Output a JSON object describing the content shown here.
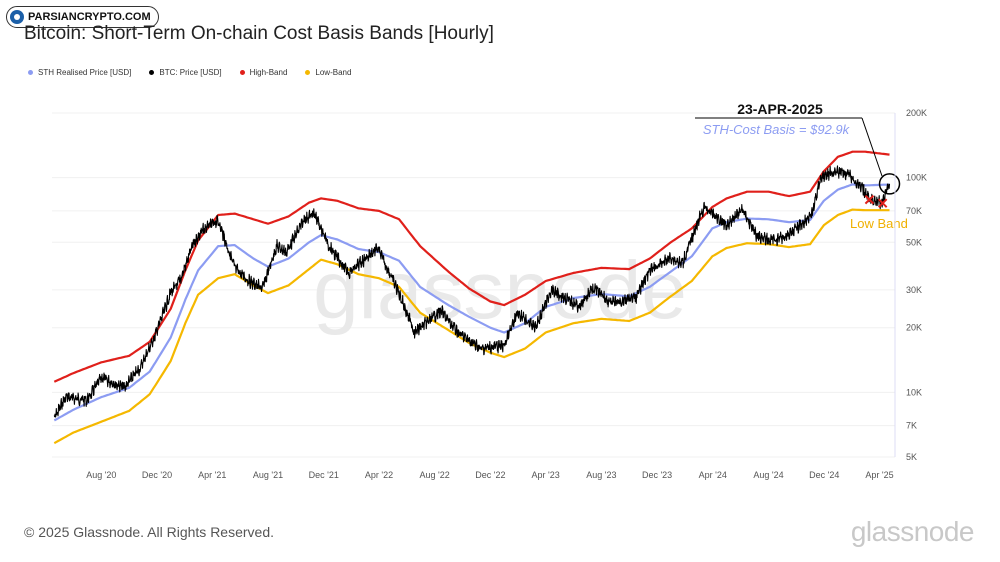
{
  "badge": {
    "text": "PARSIANCRYPTO.COM"
  },
  "title": "Bitcoin: Short-Term On-chain Cost Basis Bands [Hourly]",
  "legend": [
    {
      "label": "STH Realised Price [USD]",
      "color": "#8c9cf2"
    },
    {
      "label": "BTC: Price [USD]",
      "color": "#000000"
    },
    {
      "label": "High-Band",
      "color": "#e0201b"
    },
    {
      "label": "Low-Band",
      "color": "#f5b800"
    }
  ],
  "annotation": {
    "date": "23-APR-2025",
    "cost_basis": "STH-Cost Basis = $92.9k",
    "low_band": "Low Band"
  },
  "watermark": "glassnode",
  "footer": "© 2025 Glassnode. All Rights Reserved.",
  "brand": "glassnode",
  "chart_data": {
    "type": "line",
    "title": "Bitcoin: Short-Term On-chain Cost Basis Bands [Hourly]",
    "y_scale": "log",
    "ylim": [
      5000,
      200000
    ],
    "y_ticks": [
      {
        "value": 200000,
        "label": "200K"
      },
      {
        "value": 100000,
        "label": "100K"
      },
      {
        "value": 70000,
        "label": "70K"
      },
      {
        "value": 50000,
        "label": "50K"
      },
      {
        "value": 30000,
        "label": "30K"
      },
      {
        "value": 20000,
        "label": "20K"
      },
      {
        "value": 10000,
        "label": "10K"
      },
      {
        "value": 7000,
        "label": "7K"
      },
      {
        "value": 5000,
        "label": "5K"
      }
    ],
    "xlim": [
      "2020-04-15",
      "2025-05-05"
    ],
    "x_ticks": [
      {
        "value": "2020-08-01",
        "label": "Aug '20"
      },
      {
        "value": "2020-12-01",
        "label": "Dec '20"
      },
      {
        "value": "2021-04-01",
        "label": "Apr '21"
      },
      {
        "value": "2021-08-01",
        "label": "Aug '21"
      },
      {
        "value": "2021-12-01",
        "label": "Dec '21"
      },
      {
        "value": "2022-04-01",
        "label": "Apr '22"
      },
      {
        "value": "2022-08-01",
        "label": "Aug '22"
      },
      {
        "value": "2022-12-01",
        "label": "Dec '22"
      },
      {
        "value": "2023-04-01",
        "label": "Apr '23"
      },
      {
        "value": "2023-08-01",
        "label": "Aug '23"
      },
      {
        "value": "2023-12-01",
        "label": "Dec '23"
      },
      {
        "value": "2024-04-01",
        "label": "Apr '24"
      },
      {
        "value": "2024-08-01",
        "label": "Aug '24"
      },
      {
        "value": "2024-12-01",
        "label": "Dec '24"
      },
      {
        "value": "2025-04-01",
        "label": "Apr '25"
      }
    ],
    "grid": true,
    "series": [
      {
        "name": "BTC: Price [USD]",
        "color": "#000000",
        "points": [
          [
            "2020-04-20",
            7600
          ],
          [
            "2020-05-15",
            9500
          ],
          [
            "2020-07-01",
            9200
          ],
          [
            "2020-08-01",
            11700
          ],
          [
            "2020-09-20",
            10500
          ],
          [
            "2020-10-25",
            13000
          ],
          [
            "2020-11-25",
            18000
          ],
          [
            "2020-12-31",
            29000
          ],
          [
            "2021-01-20",
            33000
          ],
          [
            "2021-02-20",
            50000
          ],
          [
            "2021-03-15",
            58000
          ],
          [
            "2021-04-14",
            63000
          ],
          [
            "2021-05-20",
            38000
          ],
          [
            "2021-06-20",
            33000
          ],
          [
            "2021-07-20",
            30500
          ],
          [
            "2021-08-20",
            48000
          ],
          [
            "2021-09-10",
            45000
          ],
          [
            "2021-10-20",
            64000
          ],
          [
            "2021-11-10",
            68000
          ],
          [
            "2021-12-15",
            47000
          ],
          [
            "2022-01-25",
            36000
          ],
          [
            "2022-03-29",
            47000
          ],
          [
            "2022-05-15",
            29000
          ],
          [
            "2022-06-18",
            19000
          ],
          [
            "2022-08-15",
            24000
          ],
          [
            "2022-09-20",
            19000
          ],
          [
            "2022-11-10",
            16000
          ],
          [
            "2022-12-31",
            16500
          ],
          [
            "2023-01-30",
            23500
          ],
          [
            "2023-03-10",
            20000
          ],
          [
            "2023-04-14",
            30000
          ],
          [
            "2023-06-15",
            25000
          ],
          [
            "2023-07-14",
            31000
          ],
          [
            "2023-08-20",
            26000
          ],
          [
            "2023-10-15",
            27500
          ],
          [
            "2023-11-15",
            37000
          ],
          [
            "2023-12-31",
            42500
          ],
          [
            "2024-01-25",
            39500
          ],
          [
            "2024-02-28",
            62000
          ],
          [
            "2024-03-14",
            73000
          ],
          [
            "2024-04-30",
            60000
          ],
          [
            "2024-06-05",
            71000
          ],
          [
            "2024-07-05",
            54000
          ],
          [
            "2024-08-05",
            51000
          ],
          [
            "2024-09-06",
            53000
          ],
          [
            "2024-10-10",
            60000
          ],
          [
            "2024-11-05",
            68000
          ],
          [
            "2024-11-22",
            99000
          ],
          [
            "2024-12-17",
            106000
          ],
          [
            "2025-01-20",
            105000
          ],
          [
            "2025-02-25",
            87000
          ],
          [
            "2025-03-10",
            80000
          ],
          [
            "2025-04-07",
            76000
          ],
          [
            "2025-04-23",
            93500
          ]
        ]
      },
      {
        "name": "STH Realised Price [USD]",
        "color": "#8c9cf2",
        "points": [
          [
            "2020-04-20",
            7400
          ],
          [
            "2020-06-01",
            8300
          ],
          [
            "2020-08-01",
            9500
          ],
          [
            "2020-10-01",
            10500
          ],
          [
            "2020-11-15",
            12500
          ],
          [
            "2020-12-31",
            18000
          ],
          [
            "2021-02-01",
            27000
          ],
          [
            "2021-03-01",
            37000
          ],
          [
            "2021-04-14",
            48000
          ],
          [
            "2021-05-20",
            48500
          ],
          [
            "2021-06-30",
            42000
          ],
          [
            "2021-08-01",
            38500
          ],
          [
            "2021-09-15",
            42000
          ],
          [
            "2021-10-30",
            50000
          ],
          [
            "2021-11-25",
            54000
          ],
          [
            "2021-12-31",
            51500
          ],
          [
            "2022-02-15",
            46500
          ],
          [
            "2022-04-01",
            45000
          ],
          [
            "2022-05-15",
            41000
          ],
          [
            "2022-06-30",
            31000
          ],
          [
            "2022-08-31",
            25500
          ],
          [
            "2022-10-15",
            22500
          ],
          [
            "2022-12-01",
            20000
          ],
          [
            "2022-12-31",
            19000
          ],
          [
            "2023-02-15",
            21000
          ],
          [
            "2023-04-01",
            25000
          ],
          [
            "2023-06-01",
            27500
          ],
          [
            "2023-08-01",
            28700
          ],
          [
            "2023-10-01",
            28000
          ],
          [
            "2023-11-15",
            31000
          ],
          [
            "2023-12-31",
            36500
          ],
          [
            "2024-02-15",
            43000
          ],
          [
            "2024-03-31",
            58000
          ],
          [
            "2024-05-01",
            62000
          ],
          [
            "2024-06-15",
            64500
          ],
          [
            "2024-08-01",
            64000
          ],
          [
            "2024-09-15",
            62000
          ],
          [
            "2024-10-31",
            63500
          ],
          [
            "2024-11-30",
            78000
          ],
          [
            "2024-12-31",
            88000
          ],
          [
            "2025-02-01",
            93000
          ],
          [
            "2025-03-01",
            92000
          ],
          [
            "2025-04-23",
            92900
          ]
        ]
      },
      {
        "name": "High-Band",
        "color": "#e0201b",
        "points": [
          [
            "2020-04-20",
            11200
          ],
          [
            "2020-06-01",
            12300
          ],
          [
            "2020-08-01",
            13800
          ],
          [
            "2020-10-01",
            14800
          ],
          [
            "2020-11-15",
            17200
          ],
          [
            "2020-12-31",
            24500
          ],
          [
            "2021-02-01",
            37000
          ],
          [
            "2021-03-01",
            51000
          ],
          [
            "2021-04-14",
            67000
          ],
          [
            "2021-05-20",
            68000
          ],
          [
            "2021-06-30",
            64000
          ],
          [
            "2021-08-01",
            61000
          ],
          [
            "2021-09-15",
            66000
          ],
          [
            "2021-10-30",
            76500
          ],
          [
            "2021-11-25",
            80000
          ],
          [
            "2021-12-31",
            78000
          ],
          [
            "2022-02-15",
            72000
          ],
          [
            "2022-04-01",
            70000
          ],
          [
            "2022-05-15",
            64000
          ],
          [
            "2022-06-30",
            48000
          ],
          [
            "2022-08-31",
            36500
          ],
          [
            "2022-10-15",
            30500
          ],
          [
            "2022-12-01",
            26500
          ],
          [
            "2022-12-31",
            25500
          ],
          [
            "2023-02-15",
            28500
          ],
          [
            "2023-04-01",
            33000
          ],
          [
            "2023-06-01",
            36000
          ],
          [
            "2023-08-01",
            38000
          ],
          [
            "2023-10-01",
            37500
          ],
          [
            "2023-11-15",
            42000
          ],
          [
            "2023-12-31",
            50000
          ],
          [
            "2024-02-15",
            58000
          ],
          [
            "2024-03-31",
            73000
          ],
          [
            "2024-05-01",
            80000
          ],
          [
            "2024-06-15",
            86000
          ],
          [
            "2024-08-01",
            86000
          ],
          [
            "2024-09-15",
            82000
          ],
          [
            "2024-10-31",
            86000
          ],
          [
            "2024-11-30",
            107000
          ],
          [
            "2024-12-31",
            125000
          ],
          [
            "2025-02-01",
            132000
          ],
          [
            "2025-03-01",
            132000
          ],
          [
            "2025-04-23",
            128000
          ]
        ]
      },
      {
        "name": "Low-Band",
        "color": "#f5b800",
        "points": [
          [
            "2020-04-20",
            5800
          ],
          [
            "2020-06-01",
            6500
          ],
          [
            "2020-08-01",
            7300
          ],
          [
            "2020-10-01",
            8200
          ],
          [
            "2020-11-15",
            9800
          ],
          [
            "2020-12-31",
            14000
          ],
          [
            "2021-02-01",
            21000
          ],
          [
            "2021-03-01",
            28500
          ],
          [
            "2021-04-14",
            34000
          ],
          [
            "2021-05-20",
            35500
          ],
          [
            "2021-06-30",
            31500
          ],
          [
            "2021-08-01",
            29000
          ],
          [
            "2021-09-15",
            31500
          ],
          [
            "2021-10-30",
            37500
          ],
          [
            "2021-11-25",
            41500
          ],
          [
            "2021-12-31",
            39500
          ],
          [
            "2022-02-15",
            35500
          ],
          [
            "2022-04-01",
            34000
          ],
          [
            "2022-05-15",
            31000
          ],
          [
            "2022-06-30",
            23500
          ],
          [
            "2022-08-31",
            19500
          ],
          [
            "2022-10-15",
            17000
          ],
          [
            "2022-12-01",
            15300
          ],
          [
            "2022-12-31",
            14600
          ],
          [
            "2023-02-15",
            16000
          ],
          [
            "2023-04-01",
            19000
          ],
          [
            "2023-06-01",
            21000
          ],
          [
            "2023-08-01",
            22000
          ],
          [
            "2023-10-01",
            21500
          ],
          [
            "2023-11-15",
            23500
          ],
          [
            "2023-12-31",
            28000
          ],
          [
            "2024-02-15",
            33000
          ],
          [
            "2024-03-31",
            43000
          ],
          [
            "2024-05-01",
            47000
          ],
          [
            "2024-06-15",
            49500
          ],
          [
            "2024-08-01",
            49000
          ],
          [
            "2024-09-15",
            47500
          ],
          [
            "2024-10-31",
            49000
          ],
          [
            "2024-11-30",
            60000
          ],
          [
            "2024-12-31",
            67000
          ],
          [
            "2025-02-01",
            71000
          ],
          [
            "2025-03-01",
            70500
          ],
          [
            "2025-04-23",
            70500
          ]
        ]
      }
    ],
    "markers": [
      {
        "type": "cross",
        "x": "2025-03-10",
        "y": 79000,
        "color": "#e0201b"
      },
      {
        "type": "cross",
        "x": "2025-04-08",
        "y": 76000,
        "color": "#e0201b"
      },
      {
        "type": "circle",
        "x": "2025-04-23",
        "y": 93500,
        "color": "#000000"
      }
    ]
  }
}
